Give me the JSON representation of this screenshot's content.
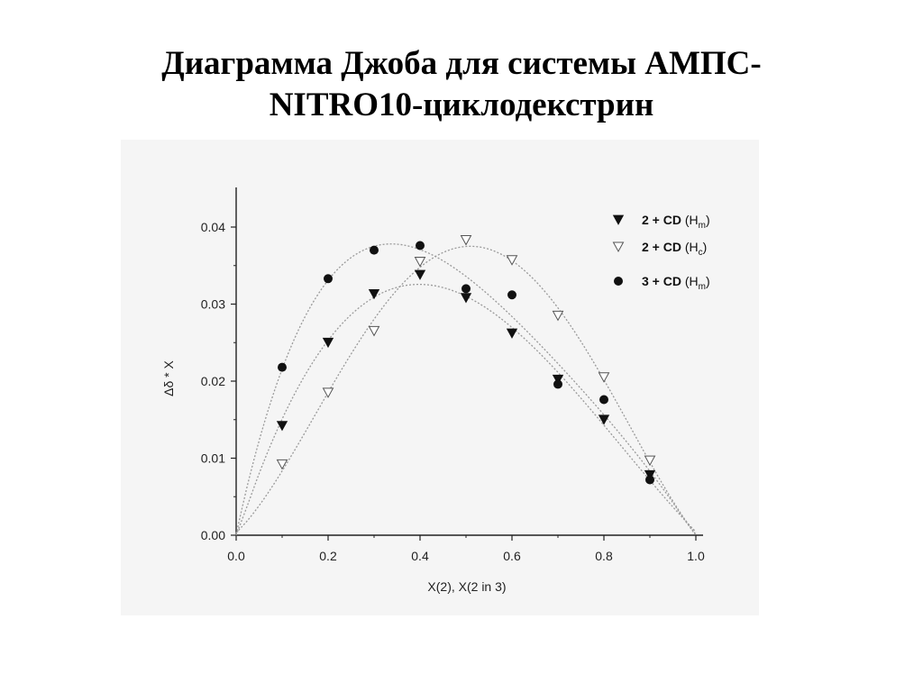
{
  "title": {
    "line1": "Диаграмма Джоба для системы АМПС-",
    "line2": "NITRO10-циклодекстрин"
  },
  "colors": {
    "background": "#ffffff",
    "plot_background": "#f5f5f5",
    "marks": "#111111",
    "fit_curve": "#9a9a9a"
  },
  "chart_data": {
    "type": "scatter",
    "xlabel": "X(2), X(2 in 3)",
    "ylabel": "Δδ * X",
    "xlim": [
      0.0,
      1.0
    ],
    "ylim": [
      0.0,
      0.04
    ],
    "x_ticks": [
      "0.0",
      "0.2",
      "0.4",
      "0.6",
      "0.8",
      "1.0"
    ],
    "y_ticks": [
      "0.00",
      "0.01",
      "0.02",
      "0.03",
      "0.04"
    ],
    "grid": false,
    "legend_position": "top-right",
    "fit_curves": "dotted",
    "series": [
      {
        "name": "2 + CD (Hm)",
        "marker": "filled-down-triangle",
        "x": [
          0.1,
          0.2,
          0.3,
          0.4,
          0.5,
          0.6,
          0.7,
          0.8,
          0.9
        ],
        "y": [
          0.0142,
          0.025,
          0.0313,
          0.0338,
          0.0308,
          0.0262,
          0.0202,
          0.015,
          0.0078
        ]
      },
      {
        "name": "2 + CD (Hc)",
        "marker": "open-down-triangle",
        "x": [
          0.1,
          0.2,
          0.3,
          0.4,
          0.5,
          0.6,
          0.7,
          0.8,
          0.9
        ],
        "y": [
          0.0092,
          0.0185,
          0.0265,
          0.0355,
          0.0383,
          0.0357,
          0.0285,
          0.0205,
          0.0097
        ]
      },
      {
        "name": "3 + CD (Hm)",
        "marker": "filled-circle",
        "x": [
          0.1,
          0.2,
          0.3,
          0.4,
          0.5,
          0.6,
          0.7,
          0.8,
          0.9
        ],
        "y": [
          0.0218,
          0.0333,
          0.037,
          0.0376,
          0.032,
          0.0312,
          0.0196,
          0.0176,
          0.0072
        ]
      }
    ],
    "legend": [
      {
        "base": "2 + CD",
        "open": "(H",
        "sub": "m",
        "close": ")"
      },
      {
        "base": "2 + CD",
        "open": "(H",
        "sub": "c",
        "close": ")"
      },
      {
        "base": "3 + CD",
        "open": "(H",
        "sub": "m",
        "close": ")"
      }
    ]
  }
}
